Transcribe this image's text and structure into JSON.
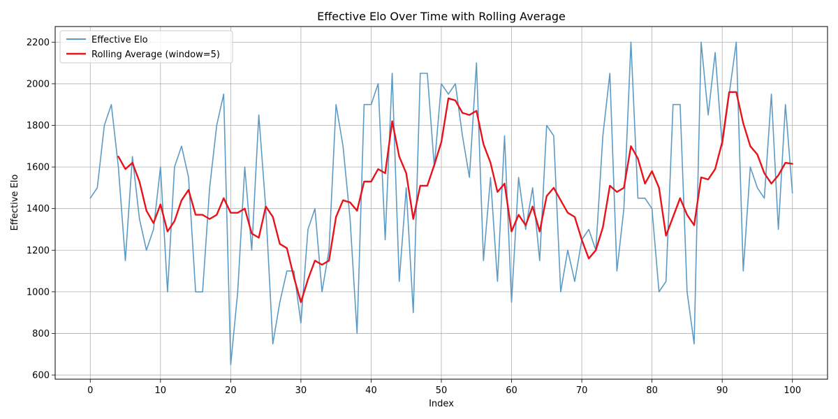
{
  "chart_data": {
    "type": "line",
    "title": "Effective Elo Over Time with Rolling Average",
    "xlabel": "Index",
    "ylabel": "Effective Elo",
    "xlim": [
      -5,
      105
    ],
    "ylim": [
      580,
      2275
    ],
    "xticks": [
      0,
      10,
      20,
      30,
      40,
      50,
      60,
      70,
      80,
      90,
      100
    ],
    "yticks": [
      600,
      800,
      1000,
      1200,
      1400,
      1600,
      1800,
      2000,
      2200
    ],
    "grid": true,
    "legend": "upper-left",
    "series": [
      {
        "name": "Effective Elo",
        "color": "#5b9bc6",
        "x": [
          0,
          1,
          2,
          3,
          4,
          5,
          6,
          7,
          8,
          9,
          10,
          11,
          12,
          13,
          14,
          15,
          16,
          17,
          18,
          19,
          20,
          21,
          22,
          23,
          24,
          25,
          26,
          27,
          28,
          29,
          30,
          31,
          32,
          33,
          34,
          35,
          36,
          37,
          38,
          39,
          40,
          41,
          42,
          43,
          44,
          45,
          46,
          47,
          48,
          49,
          50,
          51,
          52,
          53,
          54,
          55,
          56,
          57,
          58,
          59,
          60,
          61,
          62,
          63,
          64,
          65,
          66,
          67,
          68,
          69,
          70,
          71,
          72,
          73,
          74,
          75,
          76,
          77,
          78,
          79,
          80,
          81,
          82,
          83,
          84,
          85,
          86,
          87,
          88,
          89,
          90,
          91,
          92,
          93,
          94,
          95,
          96,
          97,
          98,
          99,
          100
        ],
        "values": [
          1450,
          1500,
          1800,
          1900,
          1600,
          1150,
          1650,
          1350,
          1200,
          1300,
          1600,
          1000,
          1600,
          1700,
          1550,
          1000,
          1000,
          1500,
          1800,
          1950,
          650,
          1000,
          1600,
          1200,
          1850,
          1400,
          750,
          950,
          1100,
          1100,
          850,
          1300,
          1400,
          1000,
          1200,
          1900,
          1700,
          1350,
          800,
          1900,
          1900,
          2000,
          1250,
          2050,
          1050,
          1500,
          900,
          2050,
          2050,
          1600,
          2000,
          1950,
          2000,
          1750,
          1550,
          2100,
          1150,
          1550,
          1050,
          1750,
          950,
          1550,
          1300,
          1500,
          1150,
          1800,
          1750,
          1000,
          1200,
          1050,
          1250,
          1300,
          1200,
          1750,
          2050,
          1100,
          1400,
          2200,
          1450,
          1450,
          1400,
          1000,
          1050,
          1900,
          1900,
          1000,
          750,
          2200,
          1850,
          2150,
          1700,
          1950,
          2200,
          1100,
          1600,
          1500,
          1450,
          1950,
          1300,
          1900,
          1475
        ]
      },
      {
        "name": "Rolling Average (window=5)",
        "color": "#e8121a",
        "x": [
          4,
          5,
          6,
          7,
          8,
          9,
          10,
          11,
          12,
          13,
          14,
          15,
          16,
          17,
          18,
          19,
          20,
          21,
          22,
          23,
          24,
          25,
          26,
          27,
          28,
          29,
          30,
          31,
          32,
          33,
          34,
          35,
          36,
          37,
          38,
          39,
          40,
          41,
          42,
          43,
          44,
          45,
          46,
          47,
          48,
          49,
          50,
          51,
          52,
          53,
          54,
          55,
          56,
          57,
          58,
          59,
          60,
          61,
          62,
          63,
          64,
          65,
          66,
          67,
          68,
          69,
          70,
          71,
          72,
          73,
          74,
          75,
          76,
          77,
          78,
          79,
          80,
          81,
          82,
          83,
          84,
          85,
          86,
          87,
          88,
          89,
          90,
          91,
          92,
          93,
          94,
          95,
          96,
          97,
          98,
          99,
          100
        ],
        "values": [
          1650,
          1590,
          1620,
          1530,
          1390,
          1330,
          1420,
          1290,
          1340,
          1440,
          1490,
          1370,
          1370,
          1350,
          1370,
          1450,
          1380,
          1380,
          1400,
          1280,
          1260,
          1410,
          1360,
          1230,
          1210,
          1070,
          950,
          1060,
          1150,
          1130,
          1150,
          1360,
          1440,
          1430,
          1390,
          1530,
          1530,
          1590,
          1570,
          1820,
          1650,
          1570,
          1350,
          1510,
          1510,
          1610,
          1720,
          1930,
          1920,
          1860,
          1850,
          1870,
          1710,
          1620,
          1480,
          1520,
          1290,
          1370,
          1320,
          1410,
          1290,
          1460,
          1500,
          1440,
          1380,
          1360,
          1250,
          1160,
          1200,
          1310,
          1510,
          1480,
          1500,
          1700,
          1640,
          1520,
          1580,
          1500,
          1270,
          1360,
          1450,
          1370,
          1320,
          1550,
          1540,
          1590,
          1720,
          1960,
          1960,
          1810,
          1700,
          1660,
          1570,
          1520,
          1560,
          1620,
          1615
        ]
      }
    ]
  }
}
